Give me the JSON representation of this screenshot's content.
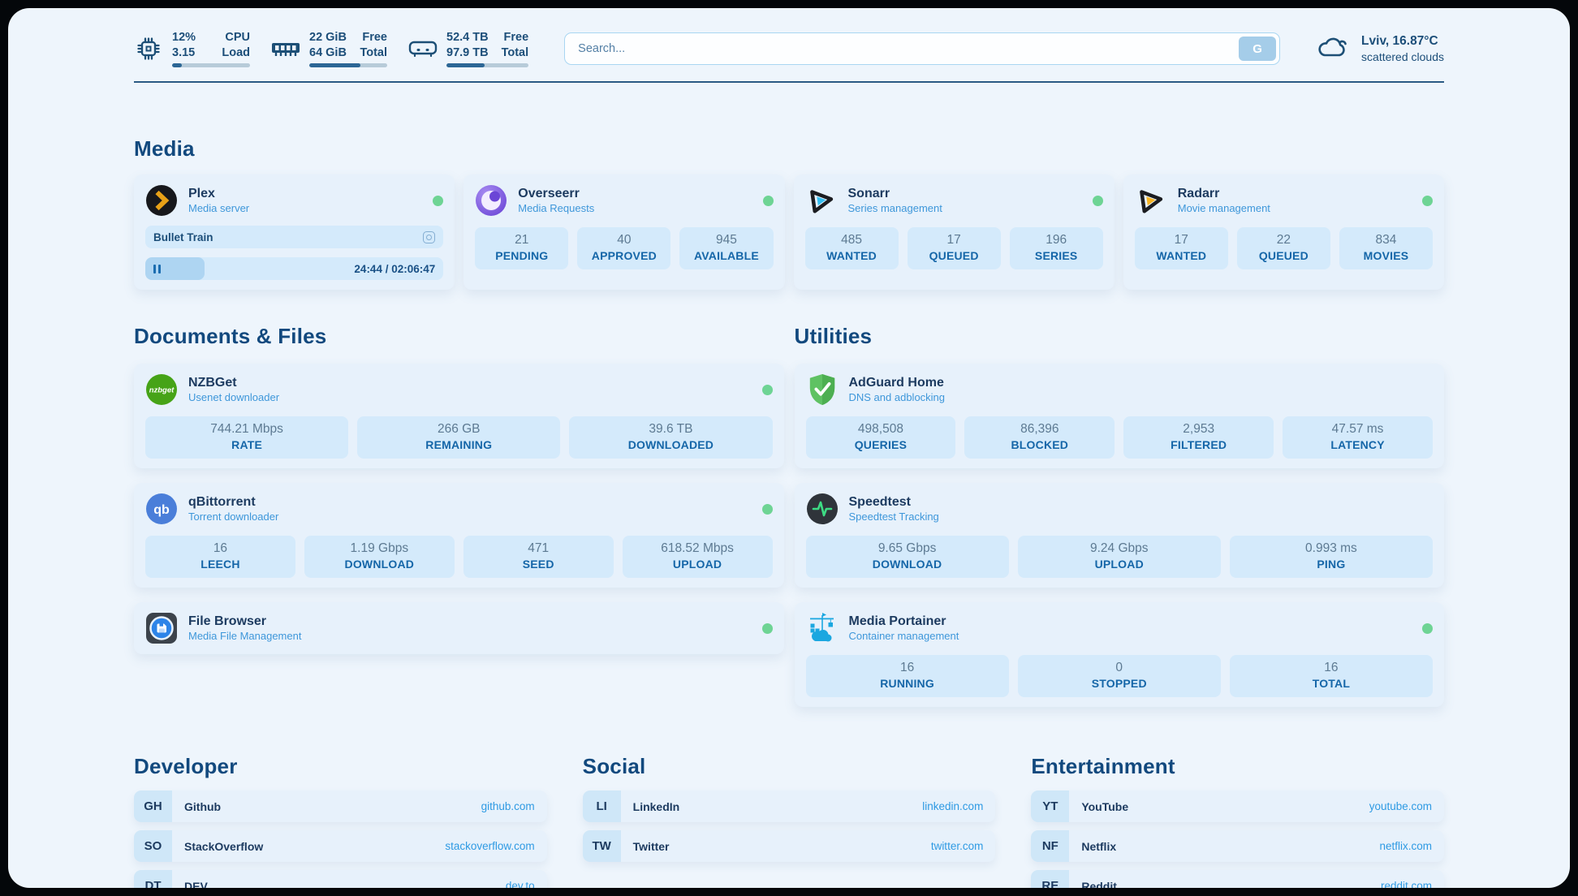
{
  "colors": {
    "page_bg": "#eef5fc",
    "card_bg": "#e7f1fb",
    "box_bg": "#d4eafb",
    "accent_link": "#2e9ae3",
    "status_online": "#6ed494",
    "bar_fill": "#2c6695",
    "heading": "#12497e"
  },
  "topbar": {
    "stats": [
      {
        "icon": "cpu-icon",
        "rows": [
          {
            "value": "12%",
            "label": "CPU"
          },
          {
            "value": "3.15",
            "label": "Load"
          }
        ],
        "progress_pct": 12
      },
      {
        "icon": "memory-icon",
        "rows": [
          {
            "value": "22 GiB",
            "label": "Free"
          },
          {
            "value": "64 GiB",
            "label": "Total"
          }
        ],
        "progress_pct": 66
      },
      {
        "icon": "disk-icon",
        "rows": [
          {
            "value": "52.4 TB",
            "label": "Free"
          },
          {
            "value": "97.9 TB",
            "label": "Total"
          }
        ],
        "progress_pct": 46
      }
    ],
    "search": {
      "placeholder": "Search...",
      "button_label": "G"
    },
    "weather": {
      "location": "Lviv, 16.87°C",
      "condition": "scattered clouds"
    }
  },
  "media": {
    "title": "Media",
    "plex": {
      "name": "Plex",
      "desc": "Media server",
      "status": "online",
      "now_playing": "Bullet Train",
      "time": "24:44 / 02:06:47",
      "progress_pct": 20,
      "state": "paused"
    },
    "overseerr": {
      "name": "Overseerr",
      "desc": "Media Requests",
      "status": "online",
      "stats": [
        {
          "value": "21",
          "label": "PENDING"
        },
        {
          "value": "40",
          "label": "APPROVED"
        },
        {
          "value": "945",
          "label": "AVAILABLE"
        }
      ]
    },
    "sonarr": {
      "name": "Sonarr",
      "desc": "Series management",
      "status": "online",
      "stats": [
        {
          "value": "485",
          "label": "WANTED"
        },
        {
          "value": "17",
          "label": "QUEUED"
        },
        {
          "value": "196",
          "label": "SERIES"
        }
      ]
    },
    "radarr": {
      "name": "Radarr",
      "desc": "Movie management",
      "status": "online",
      "stats": [
        {
          "value": "17",
          "label": "WANTED"
        },
        {
          "value": "22",
          "label": "QUEUED"
        },
        {
          "value": "834",
          "label": "MOVIES"
        }
      ]
    }
  },
  "documents": {
    "title": "Documents & Files",
    "nzbget": {
      "name": "NZBGet",
      "desc": "Usenet downloader",
      "status": "online",
      "icon_label": "nzbget",
      "stats": [
        {
          "value": "744.21 Mbps",
          "label": "RATE"
        },
        {
          "value": "266 GB",
          "label": "REMAINING"
        },
        {
          "value": "39.6 TB",
          "label": "DOWNLOADED"
        }
      ]
    },
    "qbittorrent": {
      "name": "qBittorrent",
      "desc": "Torrent downloader",
      "status": "online",
      "icon_label": "qb",
      "stats": [
        {
          "value": "16",
          "label": "LEECH"
        },
        {
          "value": "1.19 Gbps",
          "label": "DOWNLOAD"
        },
        {
          "value": "471",
          "label": "SEED"
        },
        {
          "value": "618.52 Mbps",
          "label": "UPLOAD"
        }
      ]
    },
    "filebrowser": {
      "name": "File Browser",
      "desc": "Media File Management",
      "status": "online"
    }
  },
  "utilities": {
    "title": "Utilities",
    "adguard": {
      "name": "AdGuard Home",
      "desc": "DNS and adblocking",
      "stats": [
        {
          "value": "498,508",
          "label": "QUERIES"
        },
        {
          "value": "86,396",
          "label": "BLOCKED"
        },
        {
          "value": "2,953",
          "label": "FILTERED"
        },
        {
          "value": "47.57 ms",
          "label": "LATENCY"
        }
      ]
    },
    "speedtest": {
      "name": "Speedtest",
      "desc": "Speedtest Tracking",
      "stats": [
        {
          "value": "9.65 Gbps",
          "label": "DOWNLOAD"
        },
        {
          "value": "9.24 Gbps",
          "label": "UPLOAD"
        },
        {
          "value": "0.993 ms",
          "label": "PING"
        }
      ]
    },
    "portainer": {
      "name": "Media Portainer",
      "desc": "Container management",
      "status": "online",
      "stats": [
        {
          "value": "16",
          "label": "RUNNING"
        },
        {
          "value": "0",
          "label": "STOPPED"
        },
        {
          "value": "16",
          "label": "TOTAL"
        }
      ]
    }
  },
  "bookmarks": {
    "developer": {
      "title": "Developer",
      "links": [
        {
          "abbr": "GH",
          "name": "Github",
          "url": "github.com"
        },
        {
          "abbr": "SO",
          "name": "StackOverflow",
          "url": "stackoverflow.com"
        },
        {
          "abbr": "DT",
          "name": "DEV",
          "url": "dev.to"
        }
      ]
    },
    "social": {
      "title": "Social",
      "links": [
        {
          "abbr": "LI",
          "name": "LinkedIn",
          "url": "linkedin.com"
        },
        {
          "abbr": "TW",
          "name": "Twitter",
          "url": "twitter.com"
        }
      ]
    },
    "entertainment": {
      "title": "Entertainment",
      "links": [
        {
          "abbr": "YT",
          "name": "YouTube",
          "url": "youtube.com"
        },
        {
          "abbr": "NF",
          "name": "Netflix",
          "url": "netflix.com"
        },
        {
          "abbr": "RE",
          "name": "Reddit",
          "url": "reddit.com"
        }
      ]
    }
  }
}
